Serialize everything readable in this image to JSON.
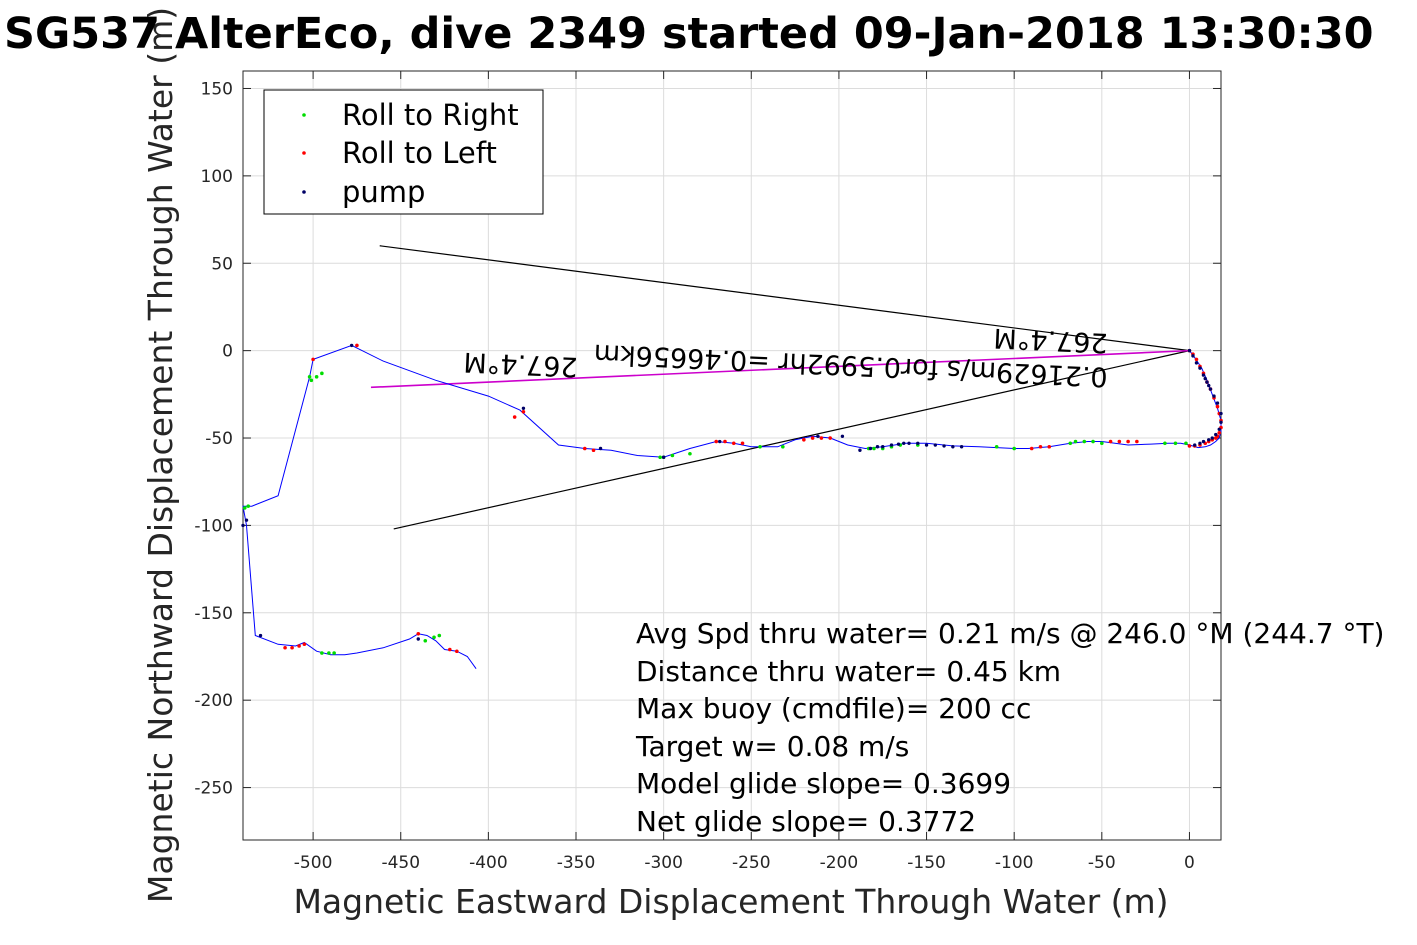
{
  "title": "SG537 AlterEco, dive 2349 started 09-Jan-2018 13:30:30",
  "chart_data": {
    "type": "line",
    "xlabel": "Magnetic Eastward Displacement Through Water (m)",
    "ylabel": "Magnetic Northward Displacement Through Water (m)",
    "xlim": [
      -540,
      18
    ],
    "ylim": [
      -280,
      160
    ],
    "xticks": [
      -500,
      -450,
      -400,
      -350,
      -300,
      -250,
      -200,
      -150,
      -100,
      -50,
      0
    ],
    "yticks": [
      150,
      100,
      50,
      0,
      -50,
      -100,
      -150,
      -200,
      -250
    ],
    "grid": true,
    "legend_placement": "top-left",
    "legend": [
      "Roll to Right",
      "Roll to Left",
      "pump"
    ],
    "colors": {
      "track": "#0000ff",
      "roll_right": "#00dd00",
      "roll_left": "#ff0000",
      "pump": "#000066",
      "heading_line": "#cc00cc",
      "cone_lines": "#000000"
    },
    "track": {
      "x": [
        0,
        3,
        7,
        10,
        13,
        16,
        18,
        18,
        17,
        15,
        12,
        9,
        5,
        0,
        -5,
        -12,
        -22,
        -35,
        -50,
        -58,
        -68,
        -80,
        -92,
        -100,
        -110,
        -120,
        -135,
        -150,
        -162,
        -175,
        -185,
        -195,
        -205,
        -215,
        -225,
        -235,
        -250,
        -260,
        -270,
        -285,
        -300,
        -315,
        -330,
        -345,
        -360,
        -382,
        -400,
        -430,
        -460,
        -478,
        -500,
        -502,
        -520,
        -535,
        -540,
        -538,
        -533,
        -520,
        -510,
        -505,
        -498,
        -490,
        -482,
        -475,
        -460,
        -445,
        -440,
        -435,
        -430,
        -425,
        -418,
        -412,
        -407
      ],
      "y": [
        0,
        -4,
        -10,
        -17,
        -25,
        -33,
        -40,
        -46,
        -50,
        -52,
        -54,
        -55,
        -55.5,
        -54,
        -53,
        -53,
        -53.5,
        -54,
        -52,
        -52,
        -53,
        -55,
        -56,
        -56,
        -55.5,
        -55,
        -54.5,
        -53,
        -53,
        -55,
        -56,
        -54,
        -50,
        -49,
        -51,
        -55,
        -55,
        -53,
        -52,
        -56,
        -61,
        -60,
        -57,
        -56,
        -54,
        -34,
        -26,
        -17,
        -6,
        3,
        -5,
        -15,
        -83,
        -89,
        -89,
        -100,
        -163,
        -168,
        -169,
        -167,
        -172,
        -174,
        -174,
        -173,
        -170,
        -165,
        -162,
        -163,
        -166,
        -171,
        -172,
        -175,
        -182
      ]
    },
    "roll_right": {
      "x": [
        -2,
        -8,
        -14,
        -50,
        -55,
        -60,
        -65,
        -68,
        -100,
        -110,
        -155,
        -165,
        -170,
        -175,
        -180,
        -183,
        -232,
        -245,
        -285,
        -295,
        -300,
        -302,
        -495,
        -498,
        -501,
        -502,
        -537,
        -539,
        -488,
        -491,
        -495,
        -428,
        -431,
        -436
      ],
      "y": [
        -53,
        -53,
        -53,
        -53,
        -52,
        -52,
        -52,
        -53,
        -56,
        -55,
        -54,
        -54,
        -55,
        -56,
        -56,
        -56,
        -55,
        -55,
        -59,
        -60,
        -61,
        -61,
        -13,
        -15,
        -17,
        -15,
        -89,
        -90,
        -173,
        -173,
        -173,
        -163,
        -164,
        -166
      ]
    },
    "roll_left": {
      "x": [
        0,
        2,
        4,
        6,
        8,
        10,
        12,
        14,
        16,
        17,
        18,
        18,
        17,
        16,
        15,
        13,
        11,
        9,
        6,
        3,
        0,
        -30,
        -35,
        -40,
        -45,
        -80,
        -85,
        -90,
        -205,
        -210,
        -215,
        -220,
        -255,
        -260,
        -265,
        -270,
        -340,
        -345,
        -380,
        -385,
        -500,
        -475,
        -505,
        -508,
        -512,
        -516,
        -440,
        -422,
        -418
      ],
      "y": [
        0,
        -2,
        -5,
        -9,
        -13,
        -18,
        -22,
        -27,
        -32,
        -36,
        -40,
        -44,
        -47,
        -49,
        -50,
        -51,
        -52,
        -53,
        -54,
        -54.5,
        -54.5,
        -52,
        -52,
        -52,
        -52,
        -55,
        -55,
        -56,
        -50,
        -50,
        -50,
        -51,
        -53,
        -53,
        -52,
        -52,
        -57,
        -56,
        -35,
        -38,
        -5,
        3,
        -168,
        -169,
        -170,
        -170,
        -162,
        -171,
        -172
      ]
    },
    "pump": {
      "x": [
        0,
        2,
        4,
        6,
        8,
        9,
        10,
        11,
        12,
        14,
        16,
        18,
        18,
        17,
        15,
        13,
        11,
        8,
        6,
        3,
        -130,
        -135,
        -140,
        -145,
        -150,
        -155,
        -160,
        -163,
        -166,
        -170,
        -175,
        -178,
        -182,
        -188,
        -198,
        -212,
        -268,
        -300,
        -336,
        -380,
        -478,
        -538,
        -540,
        -530,
        -440
      ],
      "y": [
        0,
        -3,
        -7,
        -10,
        -14,
        -16,
        -18,
        -20,
        -22,
        -26,
        -30,
        -36,
        -41,
        -45,
        -48,
        -50,
        -51,
        -52,
        -53,
        -54,
        -55,
        -55,
        -54.5,
        -54,
        -54,
        -53,
        -53,
        -53,
        -53.5,
        -54,
        -55,
        -55,
        -56,
        -57,
        -49,
        -49,
        -52,
        -61,
        -56,
        -33,
        3,
        -97,
        -100,
        -163,
        -165
      ]
    },
    "heading_line": {
      "label": "0.21629m/s for0.5992hr =0.46656km",
      "x": [
        0,
        -467
      ],
      "y": [
        0,
        -21
      ]
    },
    "cone_lines": [
      {
        "x": [
          0,
          -462
        ],
        "y": [
          0,
          60
        ]
      },
      {
        "x": [
          0,
          -454
        ],
        "y": [
          0,
          -102
        ]
      }
    ],
    "heading_labels": [
      "267.4°M",
      "267.4°M"
    ],
    "annotations": [
      "Avg Spd thru water=  0.21 m/s @ 246.0 °M (244.7 °T)",
      "Distance thru water=  0.45 km",
      "Max buoy (cmdfile)= 200 cc",
      "Target w= 0.08 m/s",
      "Model glide slope= 0.3699",
      "Net glide slope= 0.3772"
    ]
  }
}
